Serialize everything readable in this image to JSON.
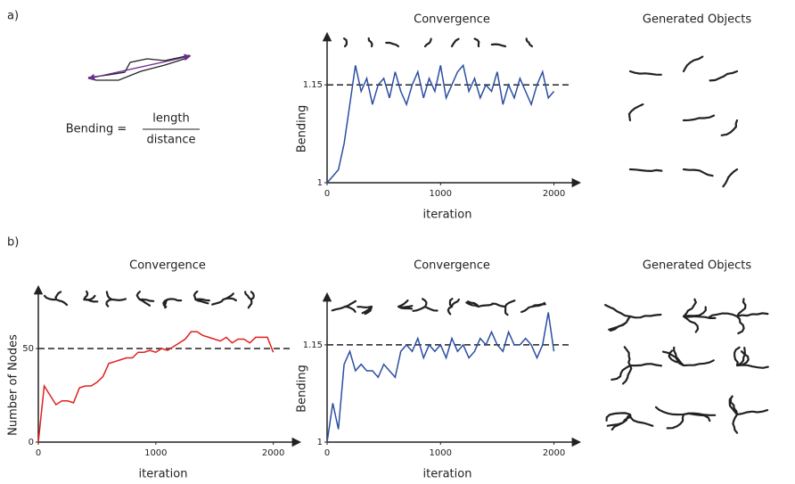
{
  "panels": {
    "a": "a)",
    "b": "b)"
  },
  "formula": {
    "lhs": "Bending =",
    "numerator": "length",
    "denominator": "distance"
  },
  "generated_titles": [
    "Generated Objects",
    "Generated Objects"
  ],
  "chart_data": [
    {
      "type": "line",
      "title": "Convergence",
      "x_label": "iteration",
      "y_label": "Bending",
      "x": [
        0,
        50,
        100,
        150,
        200,
        250,
        300,
        350,
        400,
        450,
        500,
        550,
        600,
        650,
        700,
        750,
        800,
        850,
        900,
        950,
        1000,
        1050,
        1100,
        1150,
        1200,
        1250,
        1300,
        1350,
        1400,
        1450,
        1500,
        1550,
        1600,
        1650,
        1700,
        1750,
        1800,
        1850,
        1900,
        1950,
        2000
      ],
      "series": [
        {
          "color": "#2b4ea2",
          "values": [
            1.0,
            1.01,
            1.02,
            1.06,
            1.12,
            1.18,
            1.14,
            1.16,
            1.12,
            1.15,
            1.16,
            1.13,
            1.17,
            1.14,
            1.12,
            1.15,
            1.17,
            1.13,
            1.16,
            1.14,
            1.18,
            1.13,
            1.15,
            1.17,
            1.18,
            1.14,
            1.16,
            1.13,
            1.15,
            1.14,
            1.17,
            1.12,
            1.15,
            1.13,
            1.16,
            1.14,
            1.12,
            1.15,
            1.17,
            1.13,
            1.14
          ]
        }
      ],
      "xlim": [
        0,
        2200
      ],
      "ylim": [
        1,
        1.22
      ],
      "xticks": [
        0,
        1000,
        2000
      ],
      "yticks": [
        1,
        1.15
      ],
      "reference_line": 1.15
    },
    {
      "type": "line",
      "title": "Convergence",
      "x_label": "iteration",
      "y_label": "Number of Nodes",
      "x": [
        0,
        50,
        100,
        150,
        200,
        250,
        300,
        350,
        400,
        450,
        500,
        550,
        600,
        650,
        700,
        750,
        800,
        850,
        900,
        950,
        1000,
        1050,
        1100,
        1150,
        1200,
        1250,
        1300,
        1350,
        1400,
        1450,
        1500,
        1550,
        1600,
        1650,
        1700,
        1750,
        1800,
        1850,
        1900,
        1950,
        2000
      ],
      "series": [
        {
          "color": "#e02020",
          "values": [
            0,
            30,
            25,
            20,
            22,
            22,
            21,
            29,
            30,
            30,
            32,
            35,
            42,
            43,
            44,
            45,
            45,
            48,
            48,
            49,
            48,
            50,
            49,
            51,
            53,
            55,
            59,
            59,
            57,
            56,
            55,
            54,
            56,
            53,
            55,
            55,
            53,
            56,
            56,
            56,
            48
          ]
        }
      ],
      "xlim": [
        0,
        2200
      ],
      "ylim": [
        0,
        80
      ],
      "xticks": [
        0,
        1000,
        2000
      ],
      "yticks": [
        0,
        50
      ],
      "reference_line": 50
    },
    {
      "type": "line",
      "title": "Convergence",
      "x_label": "iteration",
      "y_label": "Bending",
      "x": [
        0,
        50,
        100,
        150,
        200,
        250,
        300,
        350,
        400,
        450,
        500,
        550,
        600,
        650,
        700,
        750,
        800,
        850,
        900,
        950,
        1000,
        1050,
        1100,
        1150,
        1200,
        1250,
        1300,
        1350,
        1400,
        1450,
        1500,
        1550,
        1600,
        1650,
        1700,
        1750,
        1800,
        1850,
        1900,
        1950,
        2000
      ],
      "series": [
        {
          "color": "#2b4ea2",
          "values": [
            1.0,
            1.06,
            1.02,
            1.12,
            1.14,
            1.11,
            1.12,
            1.11,
            1.11,
            1.1,
            1.12,
            1.11,
            1.1,
            1.14,
            1.15,
            1.14,
            1.16,
            1.13,
            1.15,
            1.14,
            1.15,
            1.13,
            1.16,
            1.14,
            1.15,
            1.13,
            1.14,
            1.16,
            1.15,
            1.17,
            1.15,
            1.14,
            1.17,
            1.15,
            1.15,
            1.16,
            1.15,
            1.13,
            1.15,
            1.2,
            1.14
          ]
        }
      ],
      "xlim": [
        0,
        2200
      ],
      "ylim": [
        1,
        1.22
      ],
      "xticks": [
        0,
        1000,
        2000
      ],
      "yticks": [
        1,
        1.15
      ],
      "reference_line": 1.15
    }
  ]
}
